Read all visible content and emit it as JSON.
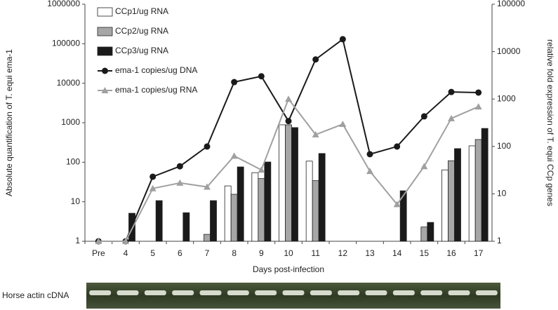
{
  "chart_data": {
    "type": "bar",
    "categories": [
      "Pre",
      "4",
      "5",
      "6",
      "7",
      "8",
      "9",
      "10",
      "11",
      "12",
      "13",
      "14",
      "15",
      "16",
      "17"
    ],
    "x_label": "Days post-infection",
    "y_label": "Absolute quantification of T. equi ema-1",
    "y2_label": "relative fold expression of T. equi CCp genes",
    "log_scale": true,
    "ylim": [
      1,
      1000000
    ],
    "yticks": [
      1,
      10,
      100,
      1000,
      10000,
      100000,
      1000000
    ],
    "y2lim": [
      1,
      100000
    ],
    "y2ticks": [
      1,
      10,
      100,
      1000,
      10000,
      100000
    ],
    "legend": "top-left",
    "series": [
      {
        "name": "CCp1/ug RNA",
        "type": "bar",
        "axis": "y2",
        "color": "#ffffff",
        "values": [
          null,
          null,
          null,
          null,
          null,
          14.7,
          28,
          286,
          49,
          null,
          null,
          null,
          null,
          32,
          103
        ]
      },
      {
        "name": "CCp2/ug RNA",
        "type": "bar",
        "axis": "y2",
        "color": "#a6a6a6",
        "values": [
          null,
          null,
          null,
          null,
          1.4,
          9.8,
          21,
          286,
          19,
          null,
          null,
          null,
          2,
          50,
          140
        ]
      },
      {
        "name": "CCp3/ug RNA",
        "type": "bar",
        "axis": "y2",
        "color": "#1a1a1a",
        "values": [
          null,
          3.9,
          7.2,
          4,
          7.2,
          37,
          47,
          250,
          71,
          null,
          null,
          11.6,
          2.5,
          90,
          240
        ]
      },
      {
        "name": "ema-1 copies/ug DNA",
        "type": "line",
        "marker": "circle",
        "color": "#1a1a1a",
        "values": [
          1,
          1,
          43,
          79,
          250,
          10700,
          15000,
          1100,
          40000,
          130000,
          160,
          250,
          1450,
          6000,
          5800
        ]
      },
      {
        "name": "ema-1 copies/ug RNA",
        "type": "line",
        "marker": "triangle",
        "axis": "y2",
        "color": "#a0a0a0",
        "values": [
          1,
          1,
          13,
          17,
          14,
          63,
          32,
          1000,
          178,
          295,
          30,
          6,
          38,
          390,
          690
        ]
      }
    ]
  },
  "gel_label": "Horse actin cDNA"
}
